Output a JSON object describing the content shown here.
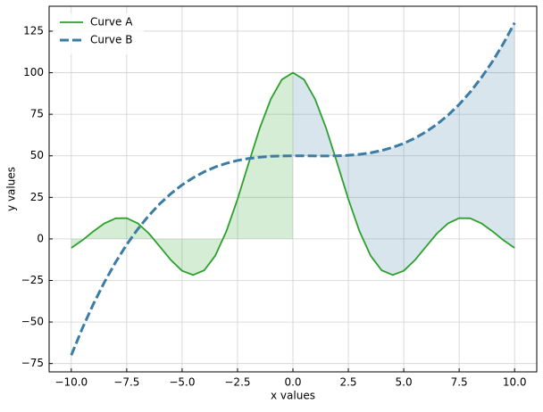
{
  "chart_data": {
    "type": "line",
    "xlabel": "x values",
    "ylabel": "y values",
    "x": [
      -10,
      -9.5,
      -9,
      -8.5,
      -8,
      -7.5,
      -7,
      -6.5,
      -6,
      -5.5,
      -5,
      -4.5,
      -4,
      -3.5,
      -3,
      -2.5,
      -2,
      -1.5,
      -1,
      -0.5,
      0,
      0.5,
      1,
      1.5,
      2,
      2.5,
      3,
      3.5,
      4,
      4.5,
      5,
      5.5,
      6,
      6.5,
      7,
      7.5,
      8,
      8.5,
      9,
      9.5,
      10
    ],
    "series": [
      {
        "name": "Curve A",
        "color": "#2ca02c",
        "linestyle": "solid",
        "values": [
          -5.4,
          -0.8,
          4.6,
          9.4,
          12.4,
          12.5,
          9.4,
          3.3,
          -4.7,
          -12.8,
          -19.2,
          -21.7,
          -18.9,
          -10.0,
          4.7,
          23.9,
          45.5,
          66.5,
          84.1,
          95.9,
          100,
          95.9,
          84.1,
          66.5,
          45.5,
          23.9,
          4.7,
          -10.0,
          -18.9,
          -21.7,
          -19.2,
          -12.8,
          -4.7,
          3.3,
          9.4,
          12.5,
          12.4,
          9.4,
          4.6,
          -0.8,
          -5.4
        ]
      },
      {
        "name": "Curve B",
        "color": "#3a7ca5",
        "linestyle": "dashed",
        "values": [
          -70,
          -53.8,
          -39.1,
          -25.9,
          -14.0,
          -3.4,
          5.9,
          14.1,
          21.2,
          27.3,
          32.5,
          36.8,
          40.4,
          43.3,
          45.5,
          47.2,
          48.4,
          49.2,
          49.7,
          49.9,
          50,
          50.0,
          49.9,
          49.9,
          50,
          50.3,
          50.9,
          51.8,
          53.2,
          55.1,
          57.5,
          60.6,
          64.4,
          69.0,
          74.5,
          80.9,
          88.4,
          97.0,
          106.7,
          117.7,
          130
        ]
      }
    ],
    "xlim": [
      -11,
      11
    ],
    "ylim": [
      -80,
      140
    ],
    "xticks": [
      {
        "value": -10,
        "label": "−10.0"
      },
      {
        "value": -7.5,
        "label": "−7.5"
      },
      {
        "value": -5,
        "label": "−5.0"
      },
      {
        "value": -2.5,
        "label": "−2.5"
      },
      {
        "value": 0,
        "label": "0.0"
      },
      2.5,
      {
        "value": 5,
        "label": "5.0"
      },
      7.5,
      {
        "value": 10,
        "label": "10.0"
      }
    ],
    "yticks": [
      {
        "value": -75,
        "label": "−75"
      },
      {
        "value": -50,
        "label": "−50"
      },
      {
        "value": -25,
        "label": "−25"
      },
      0,
      25,
      50,
      75,
      100,
      125
    ],
    "grid": true,
    "legend": "upper left"
  }
}
